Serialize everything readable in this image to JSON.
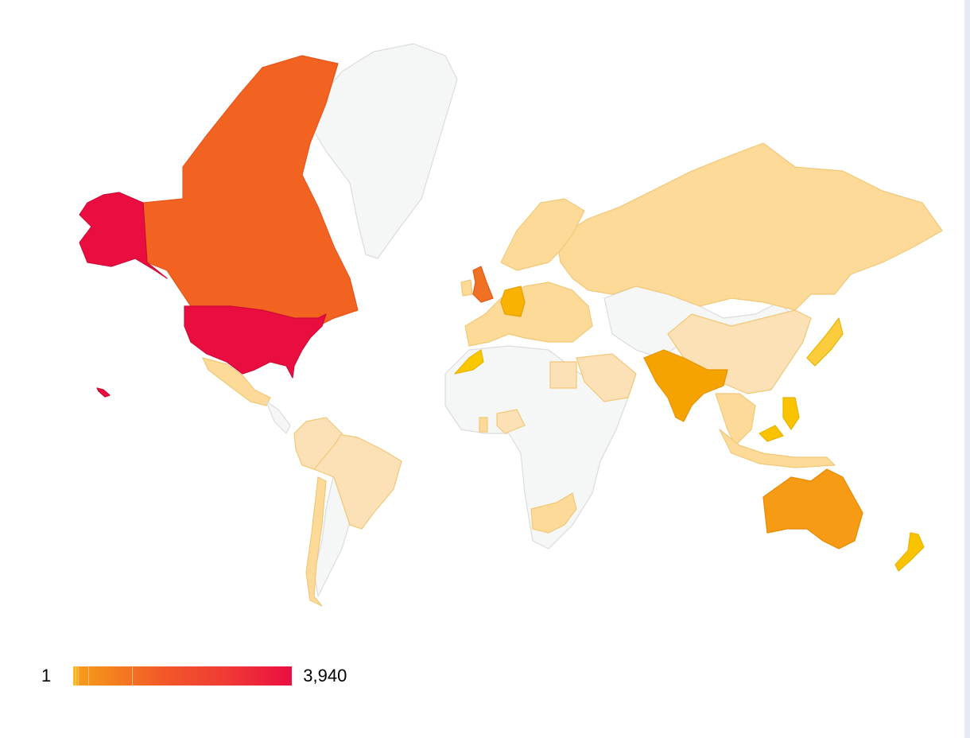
{
  "legend": {
    "min_label": "1",
    "max_label": "3,940",
    "min_color": "#fbc014",
    "max_color": "#ea0f41"
  },
  "colors": {
    "no_data": "#f5f6f6",
    "no_data_border": "#dcdcdc",
    "united_states": "#e90e3f",
    "canada": "#f26322",
    "united_kingdom": "#f07024",
    "australia": "#f79a14",
    "india": "#f5a300",
    "germany": "#f9b200",
    "new_zealand": "#f9c300",
    "morocco": "#f9c800",
    "japan": "#fbcd3c",
    "low": "#fdda98",
    "lowest": "#fde1b6"
  }
}
